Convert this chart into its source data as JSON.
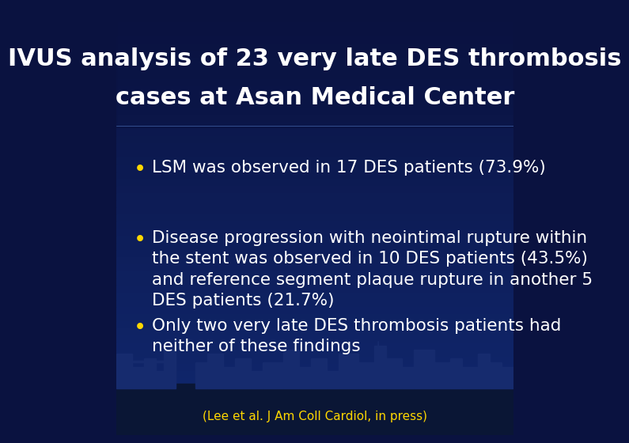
{
  "title_line1": "IVUS analysis of 23 very late DES thrombosis",
  "title_line2": "cases at Asan Medical Center",
  "title_color": "#FFFFFF",
  "title_fontsize": 22,
  "bullet_color": "#FFD700",
  "text_color": "#FFFFFF",
  "bullet_fontsize": 15.5,
  "bullets": [
    "LSM was observed in 17 DES patients (73.9%)",
    "Disease progression with neointimal rupture within\nthe stent was observed in 10 DES patients (43.5%)\nand reference segment plaque rupture in another 5\nDES patients (21.7%)",
    "Only two very late DES thrombosis patients had\nneither of these findings"
  ],
  "footnote": "(Lee et al. J Am Coll Cardiol, in press)",
  "footnote_color": "#FFD700",
  "footnote_fontsize": 11,
  "bg_top_color": "#0A1240",
  "bg_bottom_color": "#102870",
  "skyline_color": "#162B6E",
  "skyline_dark": "#0D1E50"
}
